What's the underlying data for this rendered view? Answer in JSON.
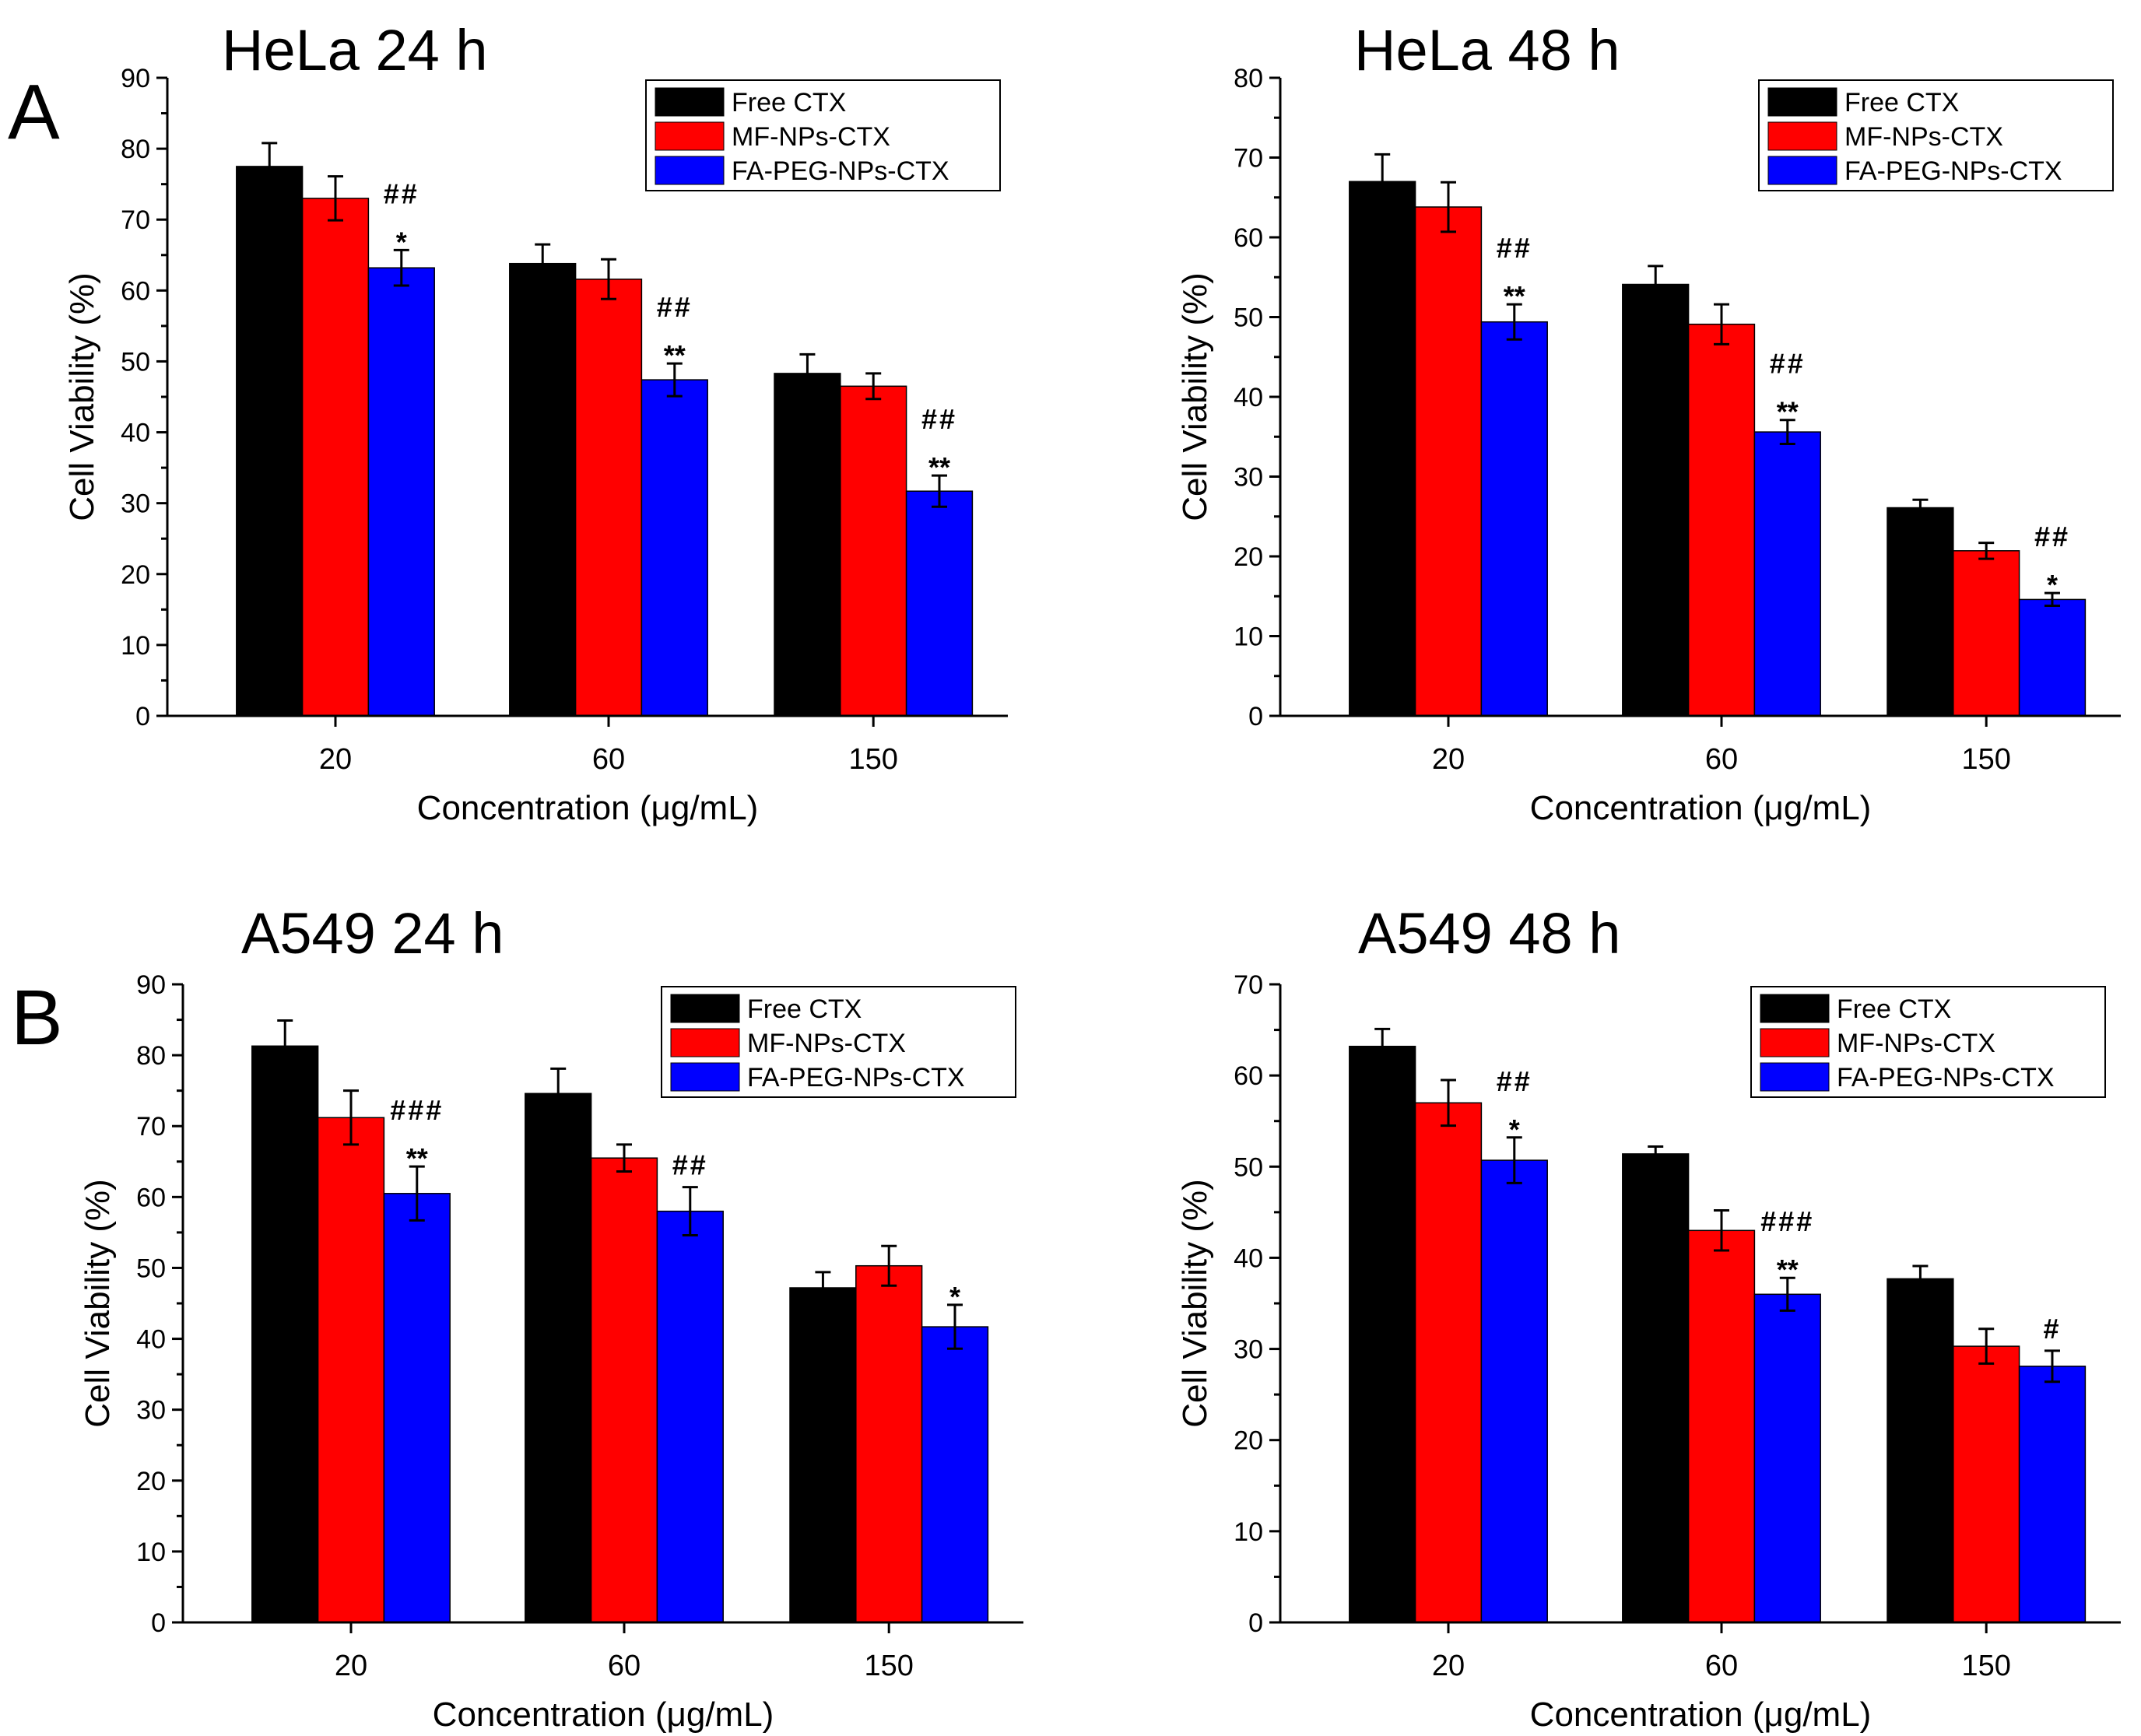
{
  "figure": {
    "panel_labels": [
      "A",
      "B"
    ]
  },
  "chart_data": [
    {
      "type": "bar",
      "title": "HeLa 24 h",
      "xlabel": "Concentration (μg/mL)",
      "ylabel": "Cell Viability (%)",
      "ylim": [
        0,
        90
      ],
      "yticks": [
        0,
        10,
        20,
        30,
        40,
        50,
        60,
        70,
        80,
        90
      ],
      "categories": [
        "20",
        "60",
        "150"
      ],
      "legend_position": "top-right",
      "series": [
        {
          "name": "Free CTX",
          "color": "#000000",
          "values": [
            77.5,
            63.8,
            48.3
          ],
          "errors": [
            3.3,
            2.7,
            2.7
          ]
        },
        {
          "name": "MF-NPs-CTX",
          "color": "#ff0000",
          "values": [
            73.0,
            61.6,
            46.5
          ],
          "errors": [
            3.1,
            2.8,
            1.8
          ]
        },
        {
          "name": "FA-PEG-NPs-CTX",
          "color": "#0000ff",
          "values": [
            63.2,
            47.4,
            31.7
          ],
          "errors": [
            2.5,
            2.3,
            2.2
          ]
        }
      ],
      "annotations": [
        {
          "category": "20",
          "series": "FA-PEG-NPs-CTX",
          "lines": [
            "##",
            "*"
          ]
        },
        {
          "category": "60",
          "series": "FA-PEG-NPs-CTX",
          "lines": [
            "##",
            "**"
          ]
        },
        {
          "category": "150",
          "series": "FA-PEG-NPs-CTX",
          "lines": [
            "##",
            "**"
          ]
        }
      ]
    },
    {
      "type": "bar",
      "title": "HeLa 48 h",
      "xlabel": "Concentration (μg/mL)",
      "ylabel": "Cell Viability (%)",
      "ylim": [
        0,
        80
      ],
      "yticks": [
        0,
        10,
        20,
        30,
        40,
        50,
        60,
        70,
        80
      ],
      "categories": [
        "20",
        "60",
        "150"
      ],
      "legend_position": "top-right",
      "series": [
        {
          "name": "Free CTX",
          "color": "#000000",
          "values": [
            67.0,
            54.1,
            26.1
          ],
          "errors": [
            3.4,
            2.3,
            1.0
          ]
        },
        {
          "name": "MF-NPs-CTX",
          "color": "#ff0000",
          "values": [
            63.8,
            49.1,
            20.7
          ],
          "errors": [
            3.1,
            2.5,
            1.0
          ]
        },
        {
          "name": "FA-PEG-NPs-CTX",
          "color": "#0000ff",
          "values": [
            49.4,
            35.6,
            14.6
          ],
          "errors": [
            2.2,
            1.5,
            0.8
          ]
        }
      ],
      "annotations": [
        {
          "category": "20",
          "series": "FA-PEG-NPs-CTX",
          "lines": [
            "##",
            "**"
          ]
        },
        {
          "category": "60",
          "series": "FA-PEG-NPs-CTX",
          "lines": [
            "##",
            "**"
          ]
        },
        {
          "category": "150",
          "series": "FA-PEG-NPs-CTX",
          "lines": [
            "##",
            "*"
          ]
        }
      ]
    },
    {
      "type": "bar",
      "title": "A549 24 h",
      "xlabel": "Concentration (μg/mL)",
      "ylabel": "Cell Viability (%)",
      "ylim": [
        0,
        90
      ],
      "yticks": [
        0,
        10,
        20,
        30,
        40,
        50,
        60,
        70,
        80,
        90
      ],
      "categories": [
        "20",
        "60",
        "150"
      ],
      "legend_position": "top-right",
      "series": [
        {
          "name": "Free CTX",
          "color": "#000000",
          "values": [
            81.3,
            74.6,
            47.2
          ],
          "errors": [
            3.6,
            3.5,
            2.2
          ]
        },
        {
          "name": "MF-NPs-CTX",
          "color": "#ff0000",
          "values": [
            71.2,
            65.5,
            50.3
          ],
          "errors": [
            3.8,
            1.9,
            2.8
          ]
        },
        {
          "name": "FA-PEG-NPs-CTX",
          "color": "#0000ff",
          "values": [
            60.5,
            58.0,
            41.7
          ],
          "errors": [
            3.8,
            3.4,
            3.1
          ]
        }
      ],
      "annotations": [
        {
          "category": "20",
          "series": "FA-PEG-NPs-CTX",
          "lines": [
            "###",
            "**"
          ]
        },
        {
          "category": "60",
          "series": "FA-PEG-NPs-CTX",
          "lines": [
            "##"
          ]
        },
        {
          "category": "150",
          "series": "FA-PEG-NPs-CTX",
          "lines": [
            "*"
          ]
        }
      ]
    },
    {
      "type": "bar",
      "title": "A549 48 h",
      "xlabel": "Concentration (μg/mL)",
      "ylabel": "Cell Viability (%)",
      "ylim": [
        0,
        70
      ],
      "yticks": [
        0,
        10,
        20,
        30,
        40,
        50,
        60,
        70
      ],
      "categories": [
        "20",
        "60",
        "150"
      ],
      "legend_position": "top-right",
      "series": [
        {
          "name": "Free CTX",
          "color": "#000000",
          "values": [
            63.2,
            51.4,
            37.7
          ],
          "errors": [
            1.9,
            0.8,
            1.4
          ]
        },
        {
          "name": "MF-NPs-CTX",
          "color": "#ff0000",
          "values": [
            57.0,
            43.0,
            30.3
          ],
          "errors": [
            2.5,
            2.2,
            1.9
          ]
        },
        {
          "name": "FA-PEG-NPs-CTX",
          "color": "#0000ff",
          "values": [
            50.7,
            36.0,
            28.1
          ],
          "errors": [
            2.5,
            1.8,
            1.7
          ]
        }
      ],
      "annotations": [
        {
          "category": "20",
          "series": "FA-PEG-NPs-CTX",
          "lines": [
            "##",
            "*"
          ]
        },
        {
          "category": "60",
          "series": "FA-PEG-NPs-CTX",
          "lines": [
            "###",
            "**"
          ]
        },
        {
          "category": "150",
          "series": "FA-PEG-NPs-CTX",
          "lines": [
            "#"
          ]
        }
      ]
    }
  ]
}
